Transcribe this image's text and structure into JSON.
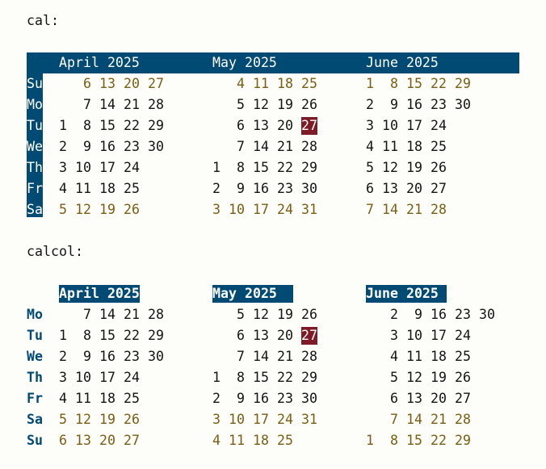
{
  "sections": [
    {
      "command": "cal:",
      "style": "cal",
      "weekdays": [
        "Su",
        "Mo",
        "Tu",
        "We",
        "Th",
        "Fr",
        "Sa"
      ],
      "months": [
        {
          "title": "April 2025",
          "start_dow": 2,
          "days": 30
        },
        {
          "title": "May 2025",
          "start_dow": 4,
          "days": 31,
          "today": 27
        },
        {
          "title": "June 2025",
          "start_dow": 0,
          "days": 30
        }
      ]
    },
    {
      "command": "calcol:",
      "style": "calcol",
      "weekdays": [
        "Mo",
        "Tu",
        "We",
        "Th",
        "Fr",
        "Sa",
        "Su"
      ],
      "months": [
        {
          "title": "April 2025",
          "start_dow": 1,
          "days": 30
        },
        {
          "title": "May 2025",
          "start_dow": 3,
          "days": 31,
          "today": 27
        },
        {
          "title": "June 2025",
          "start_dow": 6,
          "days": 30
        }
      ]
    }
  ],
  "colors": {
    "header_bg": "#004a74",
    "weekend": "#7a5d12",
    "today_bg": "#7d1b26"
  }
}
